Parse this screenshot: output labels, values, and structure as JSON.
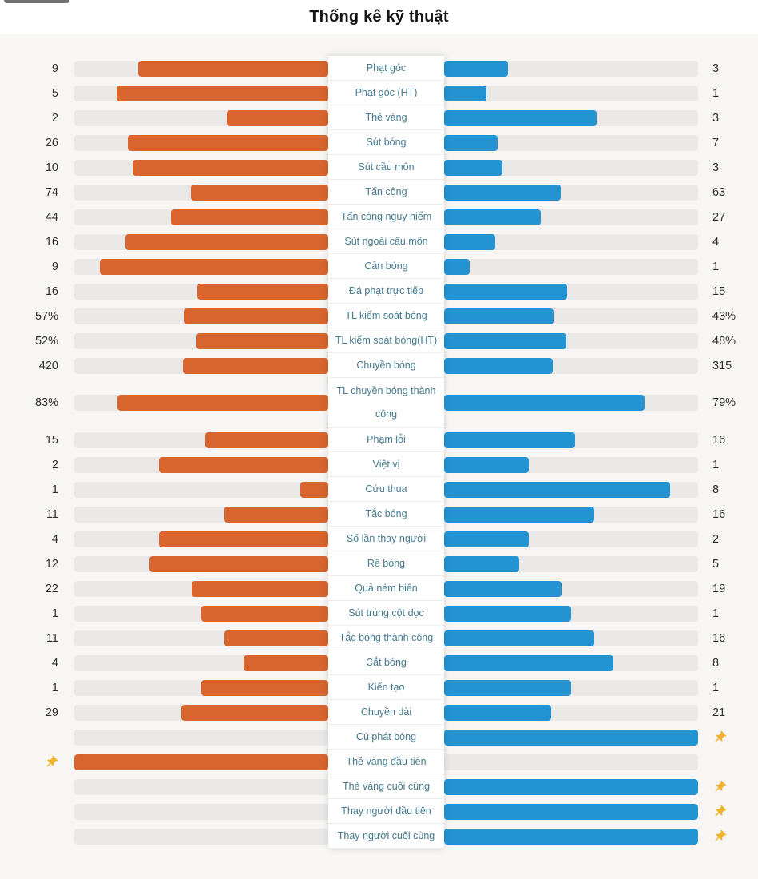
{
  "title": "Thống kê kỹ thuật",
  "colors": {
    "home_bar": "#d8652d",
    "away_bar": "#2493d2",
    "track": "#e9e8e6",
    "pin": "#f1b32b",
    "label_text": "#44798f"
  },
  "rows": [
    {
      "label": "Phạt góc",
      "left": "9",
      "right": "3",
      "pin": null
    },
    {
      "label": "Phạt góc (HT)",
      "left": "5",
      "right": "1",
      "pin": null
    },
    {
      "label": "Thẻ vàng",
      "left": "2",
      "right": "3",
      "pin": null
    },
    {
      "label": "Sút bóng",
      "left": "26",
      "right": "7",
      "pin": null
    },
    {
      "label": "Sút cầu môn",
      "left": "10",
      "right": "3",
      "pin": null
    },
    {
      "label": "Tấn công",
      "left": "74",
      "right": "63",
      "pin": null
    },
    {
      "label": "Tấn công nguy hiểm",
      "left": "44",
      "right": "27",
      "pin": null
    },
    {
      "label": "Sút ngoài cầu môn",
      "left": "16",
      "right": "4",
      "pin": null
    },
    {
      "label": "Cản bóng",
      "left": "9",
      "right": "1",
      "pin": null
    },
    {
      "label": "Đá phạt trực tiếp",
      "left": "16",
      "right": "15",
      "pin": null
    },
    {
      "label": "TL kiểm soát bóng",
      "left": "57%",
      "right": "43%",
      "pin": null
    },
    {
      "label": "TL kiểm soát bóng(HT)",
      "left": "52%",
      "right": "48%",
      "pin": null
    },
    {
      "label": "Chuyền bóng",
      "left": "420",
      "right": "315",
      "pin": null
    },
    {
      "label": "TL chuyền bóng thành công",
      "left": "83%",
      "right": "79%",
      "pin": null
    },
    {
      "label": "Phạm lỗi",
      "left": "15",
      "right": "16",
      "pin": null
    },
    {
      "label": "Việt vị",
      "left": "2",
      "right": "1",
      "pin": null
    },
    {
      "label": "Cứu thua",
      "left": "1",
      "right": "8",
      "pin": null
    },
    {
      "label": "Tắc bóng",
      "left": "11",
      "right": "16",
      "pin": null
    },
    {
      "label": "Số lần thay người",
      "left": "4",
      "right": "2",
      "pin": null
    },
    {
      "label": "Rê bóng",
      "left": "12",
      "right": "5",
      "pin": null
    },
    {
      "label": "Quả ném biên",
      "left": "22",
      "right": "19",
      "pin": null
    },
    {
      "label": "Sút trúng cột dọc",
      "left": "1",
      "right": "1",
      "pin": null
    },
    {
      "label": "Tắc bóng thành công",
      "left": "11",
      "right": "16",
      "pin": null
    },
    {
      "label": "Cắt bóng",
      "left": "4",
      "right": "8",
      "pin": null
    },
    {
      "label": "Kiến tạo",
      "left": "1",
      "right": "1",
      "pin": null
    },
    {
      "label": "Chuyền dài",
      "left": "29",
      "right": "21",
      "pin": null
    },
    {
      "label": "Cú phát bóng",
      "left": null,
      "right": null,
      "pin": "right"
    },
    {
      "label": "Thẻ vàng đầu tiên",
      "left": null,
      "right": null,
      "pin": "left"
    },
    {
      "label": "Thẻ vàng cuối cùng",
      "left": null,
      "right": null,
      "pin": "right"
    },
    {
      "label": "Thay người đầu tiên",
      "left": null,
      "right": null,
      "pin": "right"
    },
    {
      "label": "Thay người cuối cùng",
      "left": null,
      "right": null,
      "pin": "right"
    }
  ],
  "chart_data": {
    "type": "bar",
    "orientation": "horizontal-paired",
    "title": "Thống kê kỹ thuật",
    "categories": [
      "Phạt góc",
      "Phạt góc (HT)",
      "Thẻ vàng",
      "Sút bóng",
      "Sút cầu môn",
      "Tấn công",
      "Tấn công nguy hiểm",
      "Sút ngoài cầu môn",
      "Cản bóng",
      "Đá phạt trực tiếp",
      "TL kiểm soát bóng",
      "TL kiểm soát bóng(HT)",
      "Chuyền bóng",
      "TL chuyền bóng thành công",
      "Phạm lỗi",
      "Việt vị",
      "Cứu thua",
      "Tắc bóng",
      "Số lần thay người",
      "Rê bóng",
      "Quả ném biên",
      "Sút trúng cột dọc",
      "Tắc bóng thành công",
      "Cắt bóng",
      "Kiến tạo",
      "Chuyền dài",
      "Cú phát bóng",
      "Thẻ vàng đầu tiên",
      "Thẻ vàng cuối cùng",
      "Thay người đầu tiên",
      "Thay người cuối cùng"
    ],
    "series": [
      {
        "name": "left-team",
        "color": "#d8652d",
        "values": [
          "9",
          "5",
          "2",
          "26",
          "10",
          "74",
          "44",
          "16",
          "9",
          "16",
          "57%",
          "52%",
          "420",
          "83%",
          "15",
          "2",
          "1",
          "11",
          "4",
          "12",
          "22",
          "1",
          "11",
          "4",
          "1",
          "29",
          null,
          "pin",
          null,
          null,
          null
        ]
      },
      {
        "name": "right-team",
        "color": "#2493d2",
        "values": [
          "3",
          "1",
          "3",
          "7",
          "3",
          "63",
          "27",
          "4",
          "1",
          "15",
          "43%",
          "48%",
          "315",
          "79%",
          "16",
          "1",
          "8",
          "16",
          "2",
          "5",
          "19",
          "1",
          "16",
          "8",
          "1",
          "21",
          "pin",
          null,
          "pin",
          "pin",
          "pin"
        ]
      }
    ],
    "legend": "none",
    "value_scale": "percent rows use their own % as bar width; count rows use value/(left+right); pin rows show a full bar on the pinned side"
  }
}
